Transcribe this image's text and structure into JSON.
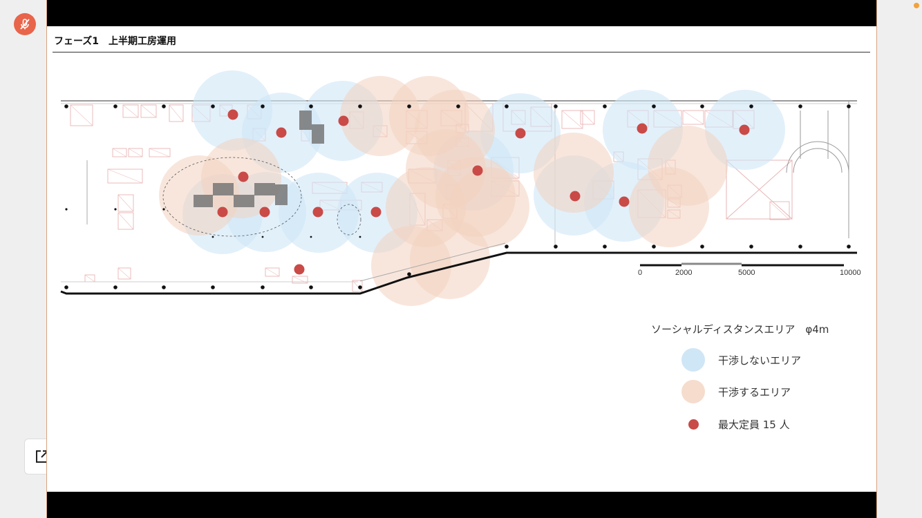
{
  "slide": {
    "title": "フェーズ1　上半期工房運用"
  },
  "scale_bar": {
    "labels": [
      "0",
      "2000",
      "5000",
      "10000"
    ]
  },
  "legend": {
    "title": "ソーシャルディスタンスエリア　φ4m",
    "items": [
      {
        "label": "干渉しないエリア",
        "color": "#cfe6f6"
      },
      {
        "label": "干渉するエリア",
        "color": "#f6dccd"
      },
      {
        "label": "最大定員 15 人",
        "color": "#c94a47"
      }
    ]
  },
  "colors": {
    "non_interfering_area": "#cfe6f6",
    "interfering_area": "#f2d2c0",
    "person_marker": "#c94a47",
    "mute_button": "#e8644a"
  },
  "icons": {
    "mute_button": "mic-off-icon",
    "open_external": "external-link-icon"
  }
}
